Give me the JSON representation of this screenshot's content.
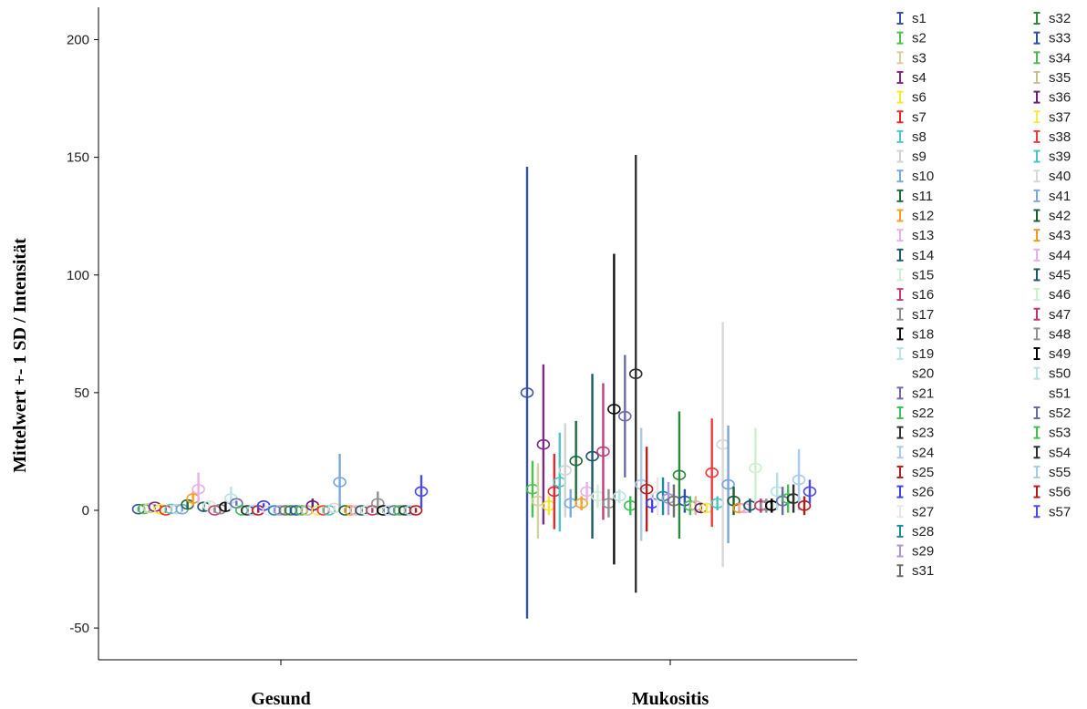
{
  "chart_data": {
    "type": "errorbar",
    "title": "",
    "xlabel": "",
    "ylabel": "Mittelwert +- 1 SD / Intensität",
    "categories": [
      "Gesund",
      "Mukositis"
    ],
    "ylim": [
      -67,
      218
    ],
    "yticks": [
      -50,
      0,
      50,
      100,
      150,
      200
    ],
    "legend_position": "right",
    "series": [
      {
        "name": "s1",
        "color": "#3953a4",
        "values": [
          {
            "mean": 0.5,
            "sd": 1
          },
          {
            "mean": 50,
            "sd": 96
          }
        ]
      },
      {
        "name": "s2",
        "color": "#4dc24a",
        "values": [
          {
            "mean": 0.6,
            "sd": 1
          },
          {
            "mean": 9,
            "sd": 12
          }
        ]
      },
      {
        "name": "s3",
        "color": "#d8cfa0",
        "values": [
          {
            "mean": 1,
            "sd": 1
          },
          {
            "mean": 4,
            "sd": 16
          }
        ]
      },
      {
        "name": "s4",
        "color": "#7b2a86",
        "values": [
          {
            "mean": 1.5,
            "sd": 1
          },
          {
            "mean": 28,
            "sd": 34
          }
        ]
      },
      {
        "name": "s6",
        "color": "#f5e829",
        "values": [
          {
            "mean": 0.5,
            "sd": 1
          },
          {
            "mean": 2,
            "sd": 4
          }
        ]
      },
      {
        "name": "s7",
        "color": "#e8282d",
        "values": [
          {
            "mean": 0,
            "sd": 1
          },
          {
            "mean": 8,
            "sd": 16
          }
        ]
      },
      {
        "name": "s8",
        "color": "#4cc7c9",
        "values": [
          {
            "mean": 0.6,
            "sd": 1
          },
          {
            "mean": 12,
            "sd": 21
          }
        ]
      },
      {
        "name": "s9",
        "color": "#d3d3d3",
        "values": [
          {
            "mean": 0.5,
            "sd": 1
          },
          {
            "mean": 17,
            "sd": 20
          }
        ]
      },
      {
        "name": "s10",
        "color": "#7aa9dc",
        "values": [
          {
            "mean": 0.5,
            "sd": 1
          },
          {
            "mean": 3,
            "sd": 6
          }
        ]
      },
      {
        "name": "s11",
        "color": "#1f6b3a",
        "values": [
          {
            "mean": 2.5,
            "sd": 2
          },
          {
            "mean": 21,
            "sd": 17
          }
        ]
      },
      {
        "name": "s12",
        "color": "#f5a125",
        "values": [
          {
            "mean": 5,
            "sd": 3
          },
          {
            "mean": 3,
            "sd": 3
          }
        ]
      },
      {
        "name": "s13",
        "color": "#e8b1e8",
        "values": [
          {
            "mean": 9,
            "sd": 7
          },
          {
            "mean": 8,
            "sd": 4
          }
        ]
      },
      {
        "name": "s14",
        "color": "#1f5a6b",
        "values": [
          {
            "mean": 1.5,
            "sd": 2
          },
          {
            "mean": 23,
            "sd": 35
          }
        ]
      },
      {
        "name": "s15",
        "color": "#cfeed6",
        "values": [
          {
            "mean": 2,
            "sd": 2
          },
          {
            "mean": 6,
            "sd": 5
          }
        ]
      },
      {
        "name": "s16",
        "color": "#c43c7a",
        "values": [
          {
            "mean": 0,
            "sd": 1
          },
          {
            "mean": 25,
            "sd": 29
          }
        ]
      },
      {
        "name": "s17",
        "color": "#8e8e8e",
        "values": [
          {
            "mean": 0.5,
            "sd": 1
          },
          {
            "mean": 3,
            "sd": 6
          }
        ]
      },
      {
        "name": "s18",
        "color": "#111111",
        "values": [
          {
            "mean": 1.5,
            "sd": 2
          },
          {
            "mean": 43,
            "sd": 66
          }
        ]
      },
      {
        "name": "s19",
        "color": "#b7e4e4",
        "values": [
          {
            "mean": 5,
            "sd": 5
          },
          {
            "mean": 6,
            "sd": 3
          }
        ]
      },
      {
        "name": "s20",
        "color": "#ffffff",
        "values": [
          {
            "mean": 0,
            "sd": 0
          },
          {
            "mean": 0,
            "sd": 0
          }
        ]
      },
      {
        "name": "s21",
        "color": "#6b6bad",
        "values": [
          {
            "mean": 3,
            "sd": 1
          },
          {
            "mean": 40,
            "sd": 26
          }
        ]
      },
      {
        "name": "s22",
        "color": "#3fbf5a",
        "values": [
          {
            "mean": 0,
            "sd": 1
          },
          {
            "mean": 2,
            "sd": 4
          }
        ]
      },
      {
        "name": "s23",
        "color": "#333333",
        "values": [
          {
            "mean": 0,
            "sd": 1
          },
          {
            "mean": 58,
            "sd": 93
          }
        ]
      },
      {
        "name": "s24",
        "color": "#a9cbe8",
        "values": [
          {
            "mean": 0,
            "sd": 1
          },
          {
            "mean": 11,
            "sd": 24
          }
        ]
      },
      {
        "name": "s25",
        "color": "#b22222",
        "values": [
          {
            "mean": 0,
            "sd": 1
          },
          {
            "mean": 9,
            "sd": 18
          }
        ]
      },
      {
        "name": "s26",
        "color": "#4040ee",
        "values": [
          {
            "mean": 2,
            "sd": 1
          },
          {
            "mean": 3,
            "sd": 4
          }
        ]
      },
      {
        "name": "s27",
        "color": "#e6e6e6",
        "values": [
          {
            "mean": 0,
            "sd": 1
          },
          {
            "mean": 6,
            "sd": 8
          }
        ]
      },
      {
        "name": "s28",
        "color": "#1e8aa0",
        "values": [
          {
            "mean": 0,
            "sd": 1
          },
          {
            "mean": 6,
            "sd": 8
          }
        ]
      },
      {
        "name": "s29",
        "color": "#b095d6",
        "values": [
          {
            "mean": 0,
            "sd": 1
          },
          {
            "mean": 5,
            "sd": 7
          }
        ]
      },
      {
        "name": "s31",
        "color": "#6e6e6e",
        "values": [
          {
            "mean": 0,
            "sd": 1
          },
          {
            "mean": 4,
            "sd": 7
          }
        ]
      },
      {
        "name": "s32",
        "color": "#2a8a3a",
        "values": [
          {
            "mean": 0,
            "sd": 1
          },
          {
            "mean": 15,
            "sd": 27
          }
        ]
      },
      {
        "name": "s33",
        "color": "#2c4fa8",
        "values": [
          {
            "mean": 0,
            "sd": 1
          },
          {
            "mean": 4,
            "sd": 5
          }
        ]
      },
      {
        "name": "s34",
        "color": "#4bb85a",
        "values": [
          {
            "mean": 0,
            "sd": 1
          },
          {
            "mean": 2,
            "sd": 4
          }
        ]
      },
      {
        "name": "s35",
        "color": "#cbbf90",
        "values": [
          {
            "mean": 0,
            "sd": 1
          },
          {
            "mean": 2,
            "sd": 4
          }
        ]
      },
      {
        "name": "s36",
        "color": "#6b1f7a",
        "values": [
          {
            "mean": 2,
            "sd": 3
          },
          {
            "mean": 1,
            "sd": 2
          }
        ]
      },
      {
        "name": "s37",
        "color": "#f8e84a",
        "values": [
          {
            "mean": 0,
            "sd": 1
          },
          {
            "mean": 1,
            "sd": 2
          }
        ]
      },
      {
        "name": "s38",
        "color": "#ee3a3a",
        "values": [
          {
            "mean": 0,
            "sd": 1
          },
          {
            "mean": 16,
            "sd": 23
          }
        ]
      },
      {
        "name": "s39",
        "color": "#49c3c3",
        "values": [
          {
            "mean": 0,
            "sd": 1
          },
          {
            "mean": 3,
            "sd": 3
          }
        ]
      },
      {
        "name": "s40",
        "color": "#d8d8d8",
        "values": [
          {
            "mean": 1,
            "sd": 1
          },
          {
            "mean": 28,
            "sd": 52
          }
        ]
      },
      {
        "name": "s41",
        "color": "#7ba7d8",
        "values": [
          {
            "mean": 12,
            "sd": 12
          },
          {
            "mean": 11,
            "sd": 25
          }
        ]
      },
      {
        "name": "s42",
        "color": "#1b5e2d",
        "values": [
          {
            "mean": 0,
            "sd": 1
          },
          {
            "mean": 4,
            "sd": 6
          }
        ]
      },
      {
        "name": "s43",
        "color": "#f29a1f",
        "values": [
          {
            "mean": 0,
            "sd": 1
          },
          {
            "mean": 1,
            "sd": 2
          }
        ]
      },
      {
        "name": "s44",
        "color": "#e6b0e6",
        "values": [
          {
            "mean": 0,
            "sd": 1
          },
          {
            "mean": 1,
            "sd": 2
          }
        ]
      },
      {
        "name": "s45",
        "color": "#1f5766",
        "values": [
          {
            "mean": 0,
            "sd": 1
          },
          {
            "mean": 2,
            "sd": 3
          }
        ]
      },
      {
        "name": "s46",
        "color": "#c9f2c9",
        "values": [
          {
            "mean": 0,
            "sd": 1
          },
          {
            "mean": 18,
            "sd": 17
          }
        ]
      },
      {
        "name": "s47",
        "color": "#c2336f",
        "values": [
          {
            "mean": 0,
            "sd": 1
          },
          {
            "mean": 2,
            "sd": 3
          }
        ]
      },
      {
        "name": "s48",
        "color": "#919191",
        "values": [
          {
            "mean": 3,
            "sd": 5
          },
          {
            "mean": 2,
            "sd": 3
          }
        ]
      },
      {
        "name": "s49",
        "color": "#000000",
        "values": [
          {
            "mean": 0,
            "sd": 1
          },
          {
            "mean": 2,
            "sd": 3
          }
        ]
      },
      {
        "name": "s50",
        "color": "#b5e2e2",
        "values": [
          {
            "mean": 0,
            "sd": 1
          },
          {
            "mean": 8,
            "sd": 8
          }
        ]
      },
      {
        "name": "s51",
        "color": "#ffffff",
        "values": [
          {
            "mean": 0,
            "sd": 0
          },
          {
            "mean": 0,
            "sd": 0
          }
        ]
      },
      {
        "name": "s52",
        "color": "#6a6aa8",
        "values": [
          {
            "mean": 0,
            "sd": 1
          },
          {
            "mean": 4,
            "sd": 6
          }
        ]
      },
      {
        "name": "s53",
        "color": "#43bf4f",
        "values": [
          {
            "mean": 0,
            "sd": 1
          },
          {
            "mean": 5,
            "sd": 6
          }
        ]
      },
      {
        "name": "s54",
        "color": "#2e2e2e",
        "values": [
          {
            "mean": 0,
            "sd": 1
          },
          {
            "mean": 5,
            "sd": 6
          }
        ]
      },
      {
        "name": "s55",
        "color": "#a7cbea",
        "values": [
          {
            "mean": 0,
            "sd": 1
          },
          {
            "mean": 13,
            "sd": 13
          }
        ]
      },
      {
        "name": "s56",
        "color": "#b01c1c",
        "values": [
          {
            "mean": 0,
            "sd": 1
          },
          {
            "mean": 2,
            "sd": 4
          }
        ]
      },
      {
        "name": "s57",
        "color": "#4a4af0",
        "values": [
          {
            "mean": 8,
            "sd": 7
          },
          {
            "mean": 8,
            "sd": 5
          }
        ]
      }
    ]
  }
}
